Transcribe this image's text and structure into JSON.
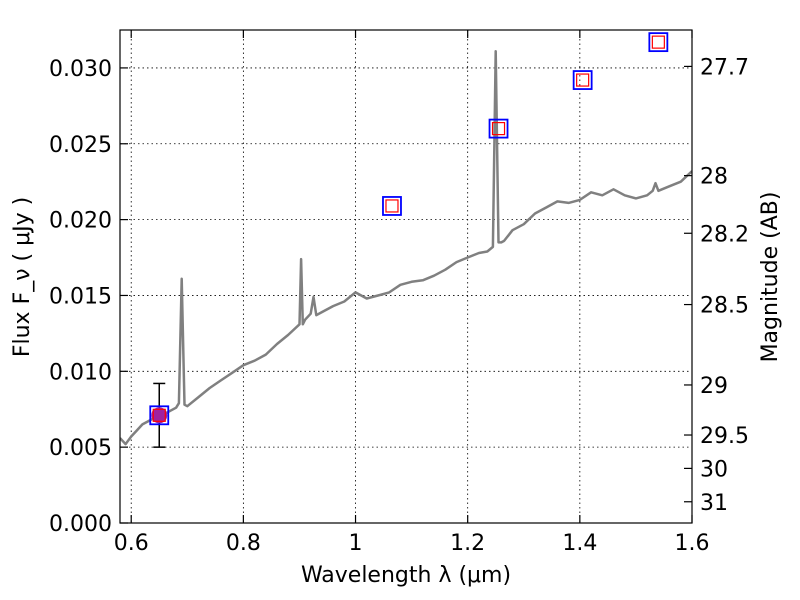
{
  "chart_data": {
    "type": "scatter",
    "title": "",
    "xlabel": "Wavelength  λ (μm)",
    "ylabel_left": "Flux  F_ν  ( μJy )",
    "ylabel_right": "Magnitude (AB)",
    "xlim": [
      0.58,
      1.6
    ],
    "ylim": [
      0.0,
      0.0325
    ],
    "grid": true,
    "xticks": [
      0.6,
      0.8,
      1.0,
      1.2,
      1.4,
      1.6
    ],
    "xtick_labels": [
      "0.6",
      "0.8",
      "1",
      "1.2",
      "1.4",
      "1.6"
    ],
    "yticks": [
      0.0,
      0.005,
      0.01,
      0.015,
      0.02,
      0.025,
      0.03
    ],
    "ytick_labels": [
      "0.000",
      "0.005",
      "0.010",
      "0.015",
      "0.020",
      "0.025",
      "0.030"
    ],
    "right_axis_ticks": [
      {
        "label": "27.7",
        "flux": 0.0301
      },
      {
        "label": "28",
        "flux": 0.0229
      },
      {
        "label": "28.2",
        "flux": 0.0191
      },
      {
        "label": "28.5",
        "flux": 0.0144
      },
      {
        "label": "29",
        "flux": 0.0091
      },
      {
        "label": "29.5",
        "flux": 0.0058
      },
      {
        "label": "30",
        "flux": 0.0036
      },
      {
        "label": "31",
        "flux": 0.0014
      }
    ],
    "series": [
      {
        "kind": "spectrum",
        "color": "#808080",
        "x": [
          0.58,
          0.59,
          0.6,
          0.61,
          0.62,
          0.63,
          0.64,
          0.65,
          0.66,
          0.67,
          0.68,
          0.685,
          0.69,
          0.695,
          0.7,
          0.72,
          0.74,
          0.76,
          0.78,
          0.8,
          0.82,
          0.84,
          0.86,
          0.88,
          0.9,
          0.903,
          0.906,
          0.91,
          0.92,
          0.925,
          0.93,
          0.94,
          0.96,
          0.98,
          1.0,
          1.02,
          1.04,
          1.06,
          1.08,
          1.1,
          1.12,
          1.14,
          1.16,
          1.18,
          1.2,
          1.22,
          1.235,
          1.245,
          1.25,
          1.255,
          1.26,
          1.265,
          1.28,
          1.3,
          1.32,
          1.34,
          1.36,
          1.38,
          1.4,
          1.42,
          1.44,
          1.46,
          1.48,
          1.5,
          1.52,
          1.53,
          1.535,
          1.54,
          1.56,
          1.58,
          1.6
        ],
        "y": [
          0.0056,
          0.0052,
          0.0057,
          0.0061,
          0.0065,
          0.0067,
          0.0069,
          0.007,
          0.0072,
          0.0074,
          0.0076,
          0.0079,
          0.0161,
          0.0078,
          0.0077,
          0.0083,
          0.0089,
          0.0094,
          0.0099,
          0.0104,
          0.0107,
          0.0111,
          0.0118,
          0.0124,
          0.0131,
          0.0174,
          0.0131,
          0.0134,
          0.0138,
          0.0149,
          0.0137,
          0.0139,
          0.0143,
          0.0146,
          0.0152,
          0.0148,
          0.015,
          0.0152,
          0.0157,
          0.0159,
          0.016,
          0.0163,
          0.0167,
          0.0172,
          0.0175,
          0.0178,
          0.0179,
          0.0182,
          0.0311,
          0.0185,
          0.0185,
          0.0186,
          0.0193,
          0.0197,
          0.0204,
          0.0208,
          0.0212,
          0.0211,
          0.0213,
          0.0218,
          0.0216,
          0.022,
          0.0216,
          0.0214,
          0.0216,
          0.0219,
          0.0224,
          0.0219,
          0.0222,
          0.0225,
          0.0232
        ]
      },
      {
        "kind": "photometry_observed",
        "color": "#a020a0",
        "x": [
          0.65
        ],
        "y": [
          0.0071
        ],
        "yerr_low": [
          0.0021
        ],
        "yerr_high": [
          0.0021
        ]
      },
      {
        "kind": "model_photometry",
        "edge_color": "#0000ff",
        "inner_color": "#ff0000",
        "x": [
          0.65,
          1.065,
          1.255,
          1.405,
          1.54
        ],
        "y": [
          0.0071,
          0.0209,
          0.026,
          0.0292,
          0.0317
        ]
      }
    ]
  }
}
